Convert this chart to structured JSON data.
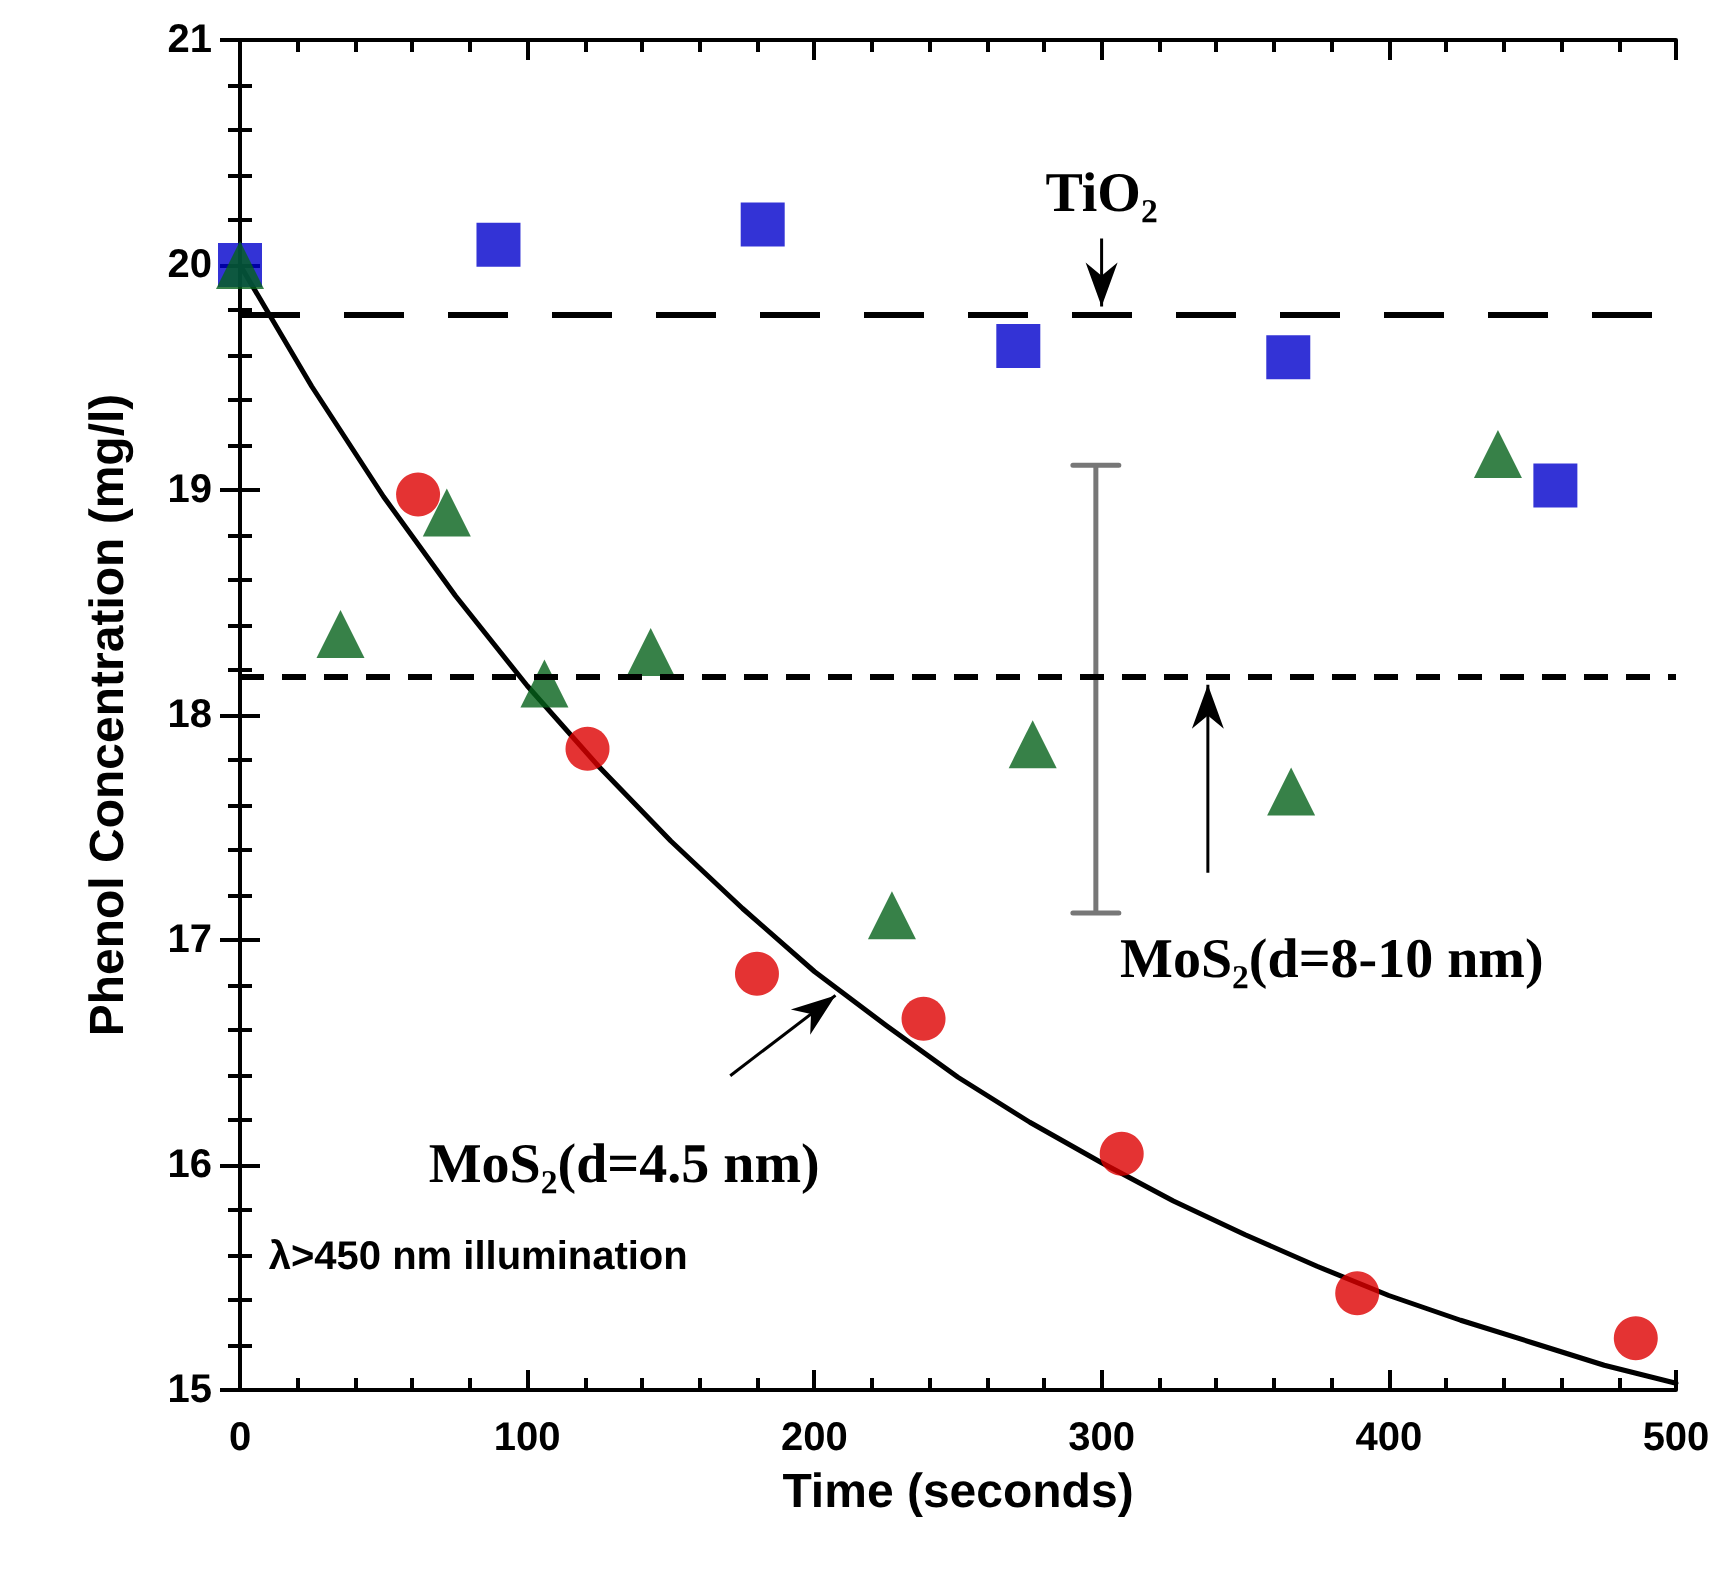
{
  "chart_data": {
    "type": "scatter",
    "xlabel": "Time (seconds)",
    "ylabel": "Phenol Concentration (mg/l)",
    "xlim": [
      0,
      500
    ],
    "xticks": [
      0,
      100,
      200,
      300,
      400,
      500
    ],
    "ylim": [
      15,
      21
    ],
    "yticks": [
      15,
      16,
      17,
      18,
      19,
      20,
      21
    ],
    "grid": false,
    "legend": false,
    "series": [
      {
        "color": "#0000cc",
        "marker": "square",
        "x": [
          0,
          90,
          182,
          271,
          365,
          458
        ],
        "values": [
          20.0,
          20.09,
          20.18,
          19.64,
          19.59,
          19.02
        ]
      },
      {
        "color": "#05621a",
        "marker": "triangle",
        "x": [
          0,
          35,
          72,
          106,
          143,
          227,
          276,
          366,
          438
        ],
        "values": [
          20.0,
          18.36,
          18.9,
          18.14,
          18.28,
          17.11,
          17.87,
          17.66,
          19.16
        ]
      },
      {
        "color": "#dd0000",
        "marker": "circle",
        "x": [
          62,
          121,
          180,
          238,
          307,
          389,
          486
        ],
        "values": [
          18.98,
          17.85,
          16.85,
          16.65,
          16.05,
          15.43,
          15.23
        ]
      },
      {
        "type": "line",
        "color": "#000000",
        "marker": "none",
        "x": [
          0,
          25,
          50,
          75,
          100,
          125,
          150,
          175,
          200,
          225,
          250,
          275,
          300,
          325,
          350,
          375,
          400,
          425,
          450,
          475,
          500
        ],
        "values": [
          20.0,
          19.46,
          18.97,
          18.53,
          18.13,
          17.77,
          17.44,
          17.14,
          16.86,
          16.62,
          16.39,
          16.19,
          16.01,
          15.84,
          15.69,
          15.55,
          15.42,
          15.31,
          15.21,
          15.11,
          15.03
        ]
      },
      {
        "type": "line",
        "color": "#777777",
        "marker": "none",
        "x": [
          290,
          306,
          298,
          298,
          290,
          306
        ],
        "values": [
          17.12,
          17.12,
          17.12,
          19.11,
          19.11,
          19.11
        ]
      }
    ],
    "ref_lines": [
      {
        "axis": "y",
        "value": 19.78,
        "line_style": "dashed"
      },
      {
        "axis": "y",
        "value": 18.17,
        "line_style": "dashed"
      }
    ],
    "annotations": [
      {
        "text": "TiO₂",
        "x": 300,
        "y": 19.78
      },
      {
        "text": "MoS₂(d=8-10 nm)",
        "x": 337,
        "y": 18.17
      },
      {
        "text": "MoS₂(d=4.5 nm)",
        "x": 209,
        "y": 16.77
      },
      "λ>450 nm illumination"
    ]
  }
}
